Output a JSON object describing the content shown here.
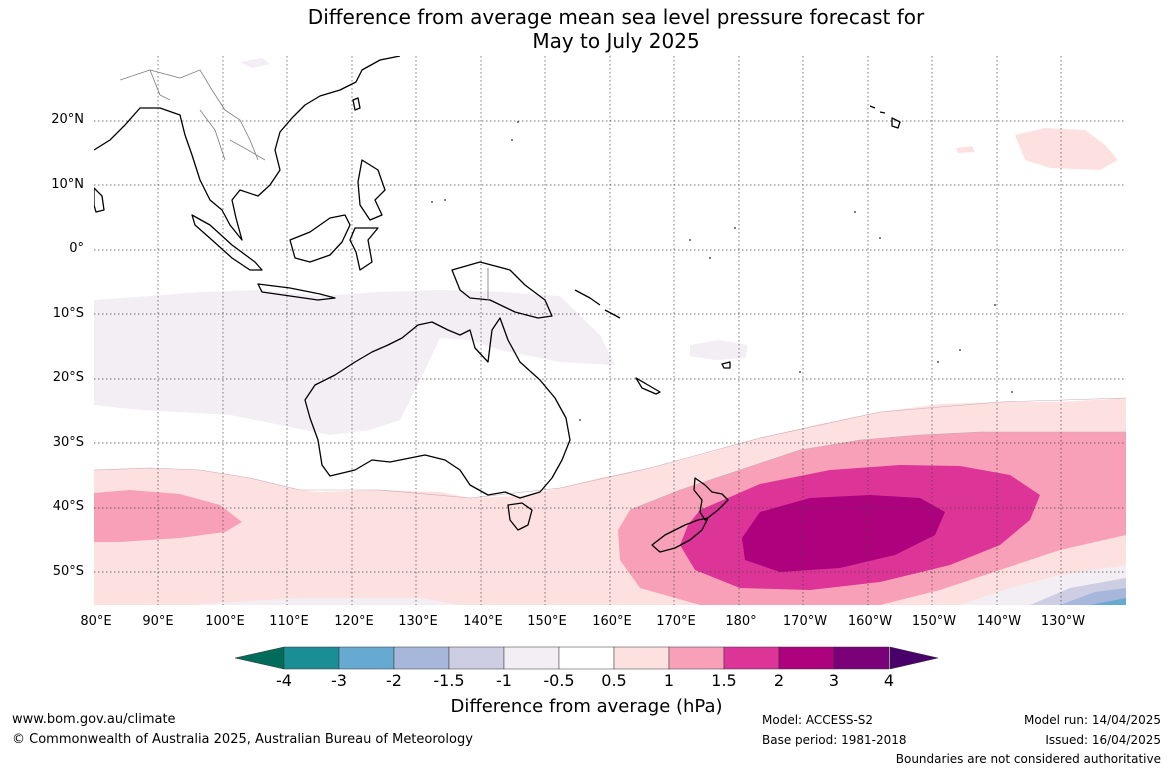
{
  "title": {
    "line1": "Difference from average mean sea level pressure forecast for",
    "line2": "May to July 2025"
  },
  "lat_labels": [
    "20°N",
    "10°N",
    "0°",
    "10°S",
    "20°S",
    "30°S",
    "40°S",
    "50°S"
  ],
  "lon_labels": [
    "80°E",
    "90°E",
    "100°E",
    "110°E",
    "120°E",
    "130°E",
    "140°E",
    "150°E",
    "160°E",
    "170°E",
    "180°",
    "170°W",
    "160°W",
    "150°W",
    "140°W",
    "130°W"
  ],
  "colorbar": {
    "ticks": [
      "-4",
      "-3",
      "-2",
      "-1.5",
      "-1",
      "-0.5",
      "0.5",
      "1",
      "1.5",
      "2",
      "3",
      "4"
    ],
    "colors": [
      "#1b8e94",
      "#66a9d1",
      "#a6b7db",
      "#cdcde4",
      "#f2eef4",
      "#ffffff",
      "#fde1e1",
      "#f7a0b8",
      "#dd3497",
      "#ae017e",
      "#7a0177"
    ],
    "end_low_color": "#016c59",
    "end_high_color": "#49006a",
    "label": "Difference from average (hPa)"
  },
  "footer": {
    "website": "www.bom.gov.au/climate",
    "copyright": "© Commonwealth of Australia 2025, Australian Bureau of Meteorology",
    "model": "Model: ACCESS-S2",
    "base_period": "Base period: 1981-2018",
    "model_run": "Model run: 14/04/2025",
    "issued": "Issued: 16/04/2025",
    "disclaimer": "Boundaries are not considered authoritative"
  }
}
